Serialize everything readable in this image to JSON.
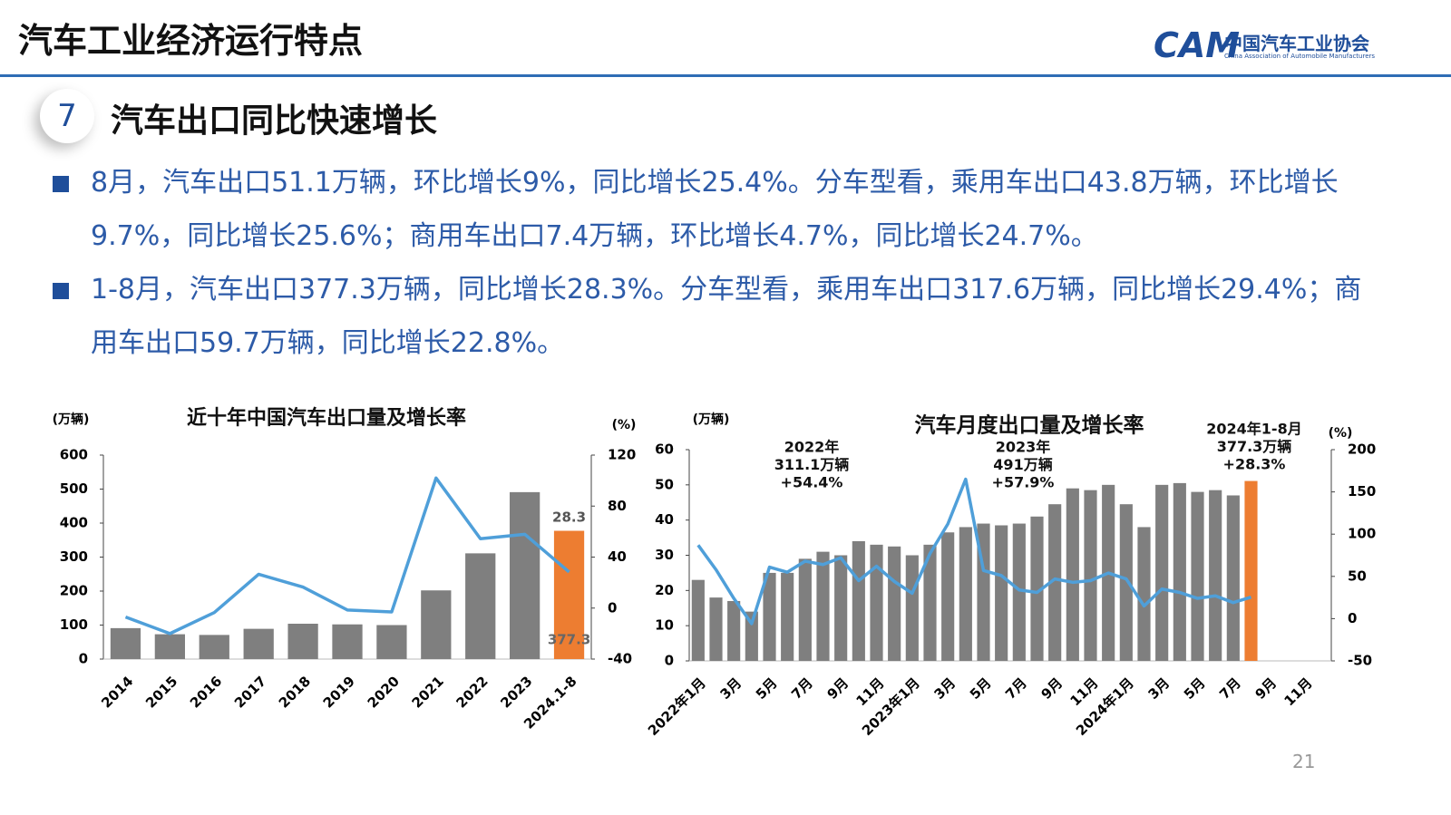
{
  "header": {
    "title": "汽车工业经济运行特点",
    "logo_cn": "中国汽车工业协会",
    "logo_en": "China Association of Automobile Manufacturers",
    "logo_mark": "CAM"
  },
  "section": {
    "number": "7",
    "heading": "汽车出口同比快速增长"
  },
  "bullets": [
    "8月，汽车出口51.1万辆，环比增长9%，同比增长25.4%。分车型看，乘用车出口43.8万辆，环比增长9.7%，同比增长25.6%；商用车出口7.4万辆，环比增长4.7%，同比增长24.7%。",
    "1-8月，汽车出口377.3万辆，同比增长28.3%。分车型看，乘用车出口317.6万辆，同比增长29.4%；商用车出口59.7万辆，同比增长22.8%。"
  ],
  "page_number": "21",
  "chart_data": [
    {
      "type": "bar_line",
      "title": "近十年中国汽车出口量及增长率",
      "y_label": "(万辆)",
      "y2_label": "(%)",
      "categories": [
        "2014",
        "2015",
        "2016",
        "2017",
        "2018",
        "2019",
        "2020",
        "2021",
        "2022",
        "2023",
        "2024.1-8"
      ],
      "series": [
        {
          "type": "bar",
          "colors": [
            "#7f7f7f",
            "#7f7f7f",
            "#7f7f7f",
            "#7f7f7f",
            "#7f7f7f",
            "#7f7f7f",
            "#7f7f7f",
            "#7f7f7f",
            "#7f7f7f",
            "#7f7f7f",
            "#ed7d31"
          ],
          "values": [
            91,
            73,
            71,
            89,
            104,
            102,
            100,
            202,
            311,
            491,
            377.3
          ],
          "value_labels": [
            null,
            null,
            null,
            null,
            null,
            null,
            null,
            null,
            null,
            null,
            "377.3"
          ]
        },
        {
          "type": "line",
          "axis": "y2",
          "color": "#4f9fd9",
          "values": [
            -7,
            -20,
            -3.5,
            26.5,
            16.5,
            -1.5,
            -3,
            102,
            54.4,
            57.9,
            28.3
          ],
          "value_labels": [
            null,
            null,
            null,
            null,
            null,
            null,
            null,
            null,
            null,
            null,
            "28.3"
          ]
        }
      ],
      "ylim": [
        0,
        600
      ],
      "yticks": [
        0,
        100,
        200,
        300,
        400,
        500,
        600
      ],
      "y2lim": [
        -40,
        120
      ],
      "y2ticks": [
        -40,
        0,
        40,
        80,
        120
      ]
    },
    {
      "type": "bar_line",
      "title": "汽车月度出口量及增长率",
      "y_label": "(万辆)",
      "y2_label": "(%)",
      "categories": [
        "2022年1月",
        null,
        "3月",
        null,
        "5月",
        null,
        "7月",
        null,
        "9月",
        null,
        "11月",
        null,
        "2023年1月",
        null,
        "3月",
        null,
        "5月",
        null,
        "7月",
        null,
        "9月",
        null,
        "11月",
        null,
        "2024年1月",
        null,
        "3月",
        null,
        "5月",
        null,
        "7月",
        null,
        "9月",
        null,
        "11月",
        null
      ],
      "series": [
        {
          "type": "bar",
          "colors": [
            "#7f7f7f",
            "#7f7f7f",
            "#7f7f7f",
            "#7f7f7f",
            "#7f7f7f",
            "#7f7f7f",
            "#7f7f7f",
            "#7f7f7f",
            "#7f7f7f",
            "#7f7f7f",
            "#7f7f7f",
            "#7f7f7f",
            "#7f7f7f",
            "#7f7f7f",
            "#7f7f7f",
            "#7f7f7f",
            "#7f7f7f",
            "#7f7f7f",
            "#7f7f7f",
            "#7f7f7f",
            "#7f7f7f",
            "#7f7f7f",
            "#7f7f7f",
            "#7f7f7f",
            "#7f7f7f",
            "#7f7f7f",
            "#7f7f7f",
            "#7f7f7f",
            "#7f7f7f",
            "#7f7f7f",
            "#7f7f7f",
            "#ed7d31",
            null,
            null,
            null,
            null
          ],
          "values": [
            23,
            18,
            17,
            14,
            25,
            25,
            29,
            31,
            30,
            34,
            33,
            32.5,
            30,
            33,
            36.5,
            38,
            39,
            38.5,
            39,
            41,
            44.5,
            49,
            48.5,
            50,
            44.5,
            38,
            50,
            50.5,
            48,
            48.5,
            47,
            51.1,
            null,
            null,
            null,
            null
          ]
        },
        {
          "type": "line",
          "axis": "y2",
          "color": "#4f9fd9",
          "values": [
            87,
            58,
            24,
            -6,
            61,
            55,
            68,
            64,
            72,
            45,
            62,
            44,
            30,
            77,
            112,
            165,
            57,
            51,
            34,
            31,
            47,
            43,
            45,
            54,
            47,
            15,
            35,
            31,
            24,
            27,
            19,
            25.4,
            null,
            null,
            null,
            null
          ]
        }
      ],
      "ylim": [
        0,
        60
      ],
      "yticks": [
        0,
        10,
        20,
        30,
        40,
        50,
        60
      ],
      "y2lim": [
        -50,
        200
      ],
      "y2ticks": [
        -50,
        0,
        50,
        100,
        150,
        200
      ],
      "annotations": [
        [
          "2022年",
          "311.1万辆",
          "+54.4%"
        ],
        [
          "2023年",
          "491万辆",
          "+57.9%"
        ],
        [
          "2024年1-8月",
          "377.3万辆",
          "+28.3%"
        ]
      ]
    }
  ]
}
